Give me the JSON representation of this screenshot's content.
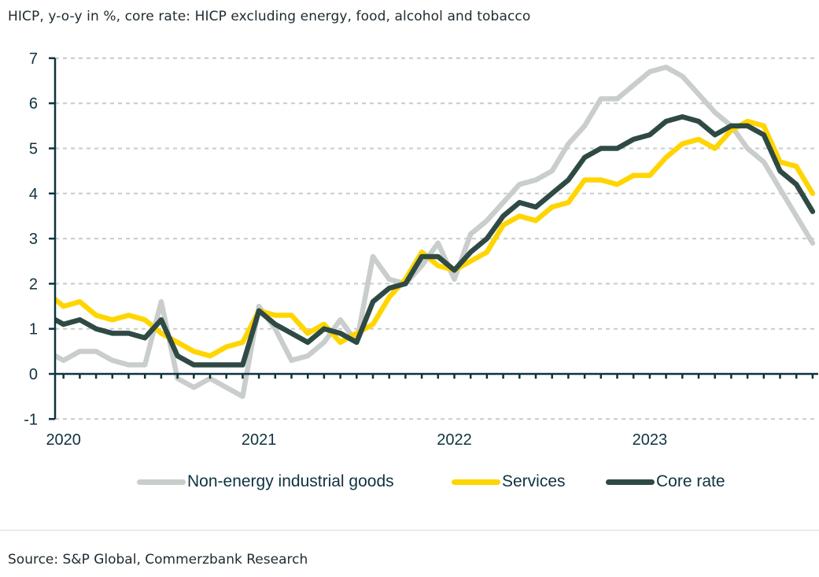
{
  "subtitle": "HICP, y-o-y in %, core rate: HICP excluding energy, food, alcohol and tobacco",
  "source": "Source: S&P Global, Commerzbank Research",
  "chart_data": {
    "type": "line",
    "title": "",
    "subtitle": "HICP, y-o-y in %, core rate: HICP excluding energy, food, alcohol and tobacco",
    "xlabel": "",
    "ylabel": "",
    "ylim": [
      -1,
      7
    ],
    "yticks": [
      -1,
      0,
      1,
      2,
      3,
      4,
      5,
      6,
      7
    ],
    "grid": "horizontal dashed",
    "legend_position": "bottom",
    "x_tick_labels": [
      {
        "label": "2020",
        "month_index": 0
      },
      {
        "label": "2021",
        "month_index": 12
      },
      {
        "label": "2022",
        "month_index": 24
      },
      {
        "label": "2023",
        "month_index": 36
      }
    ],
    "x_start_note": "axis begins mid-Dec 2019; first value is Dec 2019 (partially clipped)",
    "x": [
      "2019-12",
      "2020-01",
      "2020-02",
      "2020-03",
      "2020-04",
      "2020-05",
      "2020-06",
      "2020-07",
      "2020-08",
      "2020-09",
      "2020-10",
      "2020-11",
      "2020-12",
      "2021-01",
      "2021-02",
      "2021-03",
      "2021-04",
      "2021-05",
      "2021-06",
      "2021-07",
      "2021-08",
      "2021-09",
      "2021-10",
      "2021-11",
      "2021-12",
      "2022-01",
      "2022-02",
      "2022-03",
      "2022-04",
      "2022-05",
      "2022-06",
      "2022-07",
      "2022-08",
      "2022-09",
      "2022-10",
      "2022-11",
      "2022-12",
      "2023-01",
      "2023-02",
      "2023-03",
      "2023-04",
      "2023-05",
      "2023-06",
      "2023-07",
      "2023-08",
      "2023-09",
      "2023-10",
      "2023-11"
    ],
    "series": [
      {
        "name": "Non-energy industrial goods",
        "color": "#c9cdcb",
        "values": [
          0.5,
          0.3,
          0.5,
          0.5,
          0.3,
          0.2,
          0.2,
          1.6,
          -0.1,
          -0.3,
          -0.1,
          -0.3,
          -0.5,
          1.5,
          1.0,
          0.3,
          0.4,
          0.7,
          1.2,
          0.7,
          2.6,
          2.1,
          2.0,
          2.4,
          2.9,
          2.1,
          3.1,
          3.4,
          3.8,
          4.2,
          4.3,
          4.5,
          5.1,
          5.5,
          6.1,
          6.1,
          6.4,
          6.7,
          6.8,
          6.6,
          6.2,
          5.8,
          5.5,
          5.0,
          4.7,
          4.1,
          3.5,
          2.9
        ]
      },
      {
        "name": "Services",
        "color": "#ffd500",
        "values": [
          1.8,
          1.5,
          1.6,
          1.3,
          1.2,
          1.3,
          1.2,
          0.9,
          0.7,
          0.5,
          0.4,
          0.6,
          0.7,
          1.4,
          1.3,
          1.3,
          0.9,
          1.1,
          0.7,
          0.9,
          1.1,
          1.7,
          2.1,
          2.7,
          2.4,
          2.3,
          2.5,
          2.7,
          3.3,
          3.5,
          3.4,
          3.7,
          3.8,
          4.3,
          4.3,
          4.2,
          4.4,
          4.4,
          4.8,
          5.1,
          5.2,
          5.0,
          5.4,
          5.6,
          5.5,
          4.7,
          4.6,
          4.0
        ]
      },
      {
        "name": "Core rate",
        "color": "#2f4a44",
        "values": [
          1.3,
          1.1,
          1.2,
          1.0,
          0.9,
          0.9,
          0.8,
          1.2,
          0.4,
          0.2,
          0.2,
          0.2,
          0.2,
          1.4,
          1.1,
          0.9,
          0.7,
          1.0,
          0.9,
          0.7,
          1.6,
          1.9,
          2.0,
          2.6,
          2.6,
          2.3,
          2.7,
          3.0,
          3.5,
          3.8,
          3.7,
          4.0,
          4.3,
          4.8,
          5.0,
          5.0,
          5.2,
          5.3,
          5.6,
          5.7,
          5.6,
          5.3,
          5.5,
          5.5,
          5.3,
          4.5,
          4.2,
          3.6
        ]
      }
    ]
  },
  "legend": [
    {
      "label": "Non-energy industrial goods",
      "color": "#c9cdcb"
    },
    {
      "label": "Services",
      "color": "#ffd500"
    },
    {
      "label": "Core rate",
      "color": "#2f4a44"
    }
  ]
}
